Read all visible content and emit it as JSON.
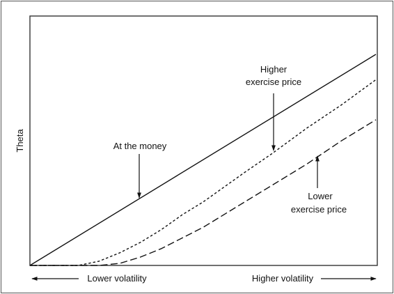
{
  "chart_data": {
    "type": "line",
    "title": "",
    "ylabel": "Theta",
    "x_axis": {
      "left_label": "Lower volatility",
      "right_label": "Higher volatility"
    },
    "x_range": [
      0,
      1
    ],
    "y_range": [
      0,
      1
    ],
    "grid": false,
    "legend": "none",
    "colors": {
      "line": "#111111",
      "frame": "#555555"
    },
    "series": [
      {
        "label": "At the money",
        "style": "solid",
        "x": [
          0.0,
          1.0
        ],
        "y": [
          0.0,
          1.0
        ]
      },
      {
        "label": "Higher exercise price",
        "style": "dotted",
        "x": [
          0.0,
          0.14,
          0.2,
          0.26,
          0.32,
          0.38,
          0.44,
          0.5,
          0.56,
          0.62,
          0.7,
          0.8,
          0.9,
          1.0
        ],
        "y": [
          0.0,
          0.0,
          0.02,
          0.06,
          0.11,
          0.17,
          0.24,
          0.3,
          0.37,
          0.44,
          0.53,
          0.65,
          0.76,
          0.88
        ]
      },
      {
        "label": "Lower exercise price",
        "style": "dashed",
        "x": [
          0.0,
          0.2,
          0.26,
          0.32,
          0.38,
          0.44,
          0.5,
          0.56,
          0.62,
          0.7,
          0.8,
          0.9,
          1.0
        ],
        "y": [
          0.0,
          0.0,
          0.01,
          0.04,
          0.08,
          0.13,
          0.18,
          0.24,
          0.3,
          0.38,
          0.48,
          0.59,
          0.69
        ]
      }
    ],
    "annotations": [
      {
        "id": "at-money",
        "lines": [
          "At the money"
        ]
      },
      {
        "id": "higher",
        "lines": [
          "Higher",
          "exercise price"
        ]
      },
      {
        "id": "lower",
        "lines": [
          "Lower",
          "exercise price"
        ]
      }
    ]
  }
}
